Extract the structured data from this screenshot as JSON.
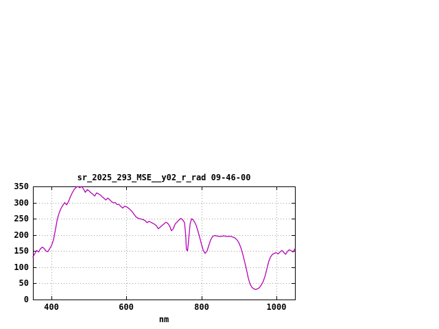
{
  "chart_data": {
    "type": "line",
    "title": "sr_2025_293_MSE__y02_r_rad 09-46-00",
    "xlabel": "nm",
    "ylabel": "",
    "xlim": [
      350,
      1050
    ],
    "ylim": [
      0,
      350
    ],
    "xticks": [
      400,
      600,
      800,
      1000
    ],
    "yticks": [
      0,
      50,
      100,
      150,
      200,
      250,
      300,
      350
    ],
    "grid": true,
    "legend": "none",
    "line_color": "#b400b4",
    "border_color": "#000000",
    "grid_color": "#999999",
    "series": [
      {
        "name": "sr_2025_293_MSE__y02_r_rad",
        "points": [
          [
            350,
            132
          ],
          [
            355,
            142
          ],
          [
            360,
            152
          ],
          [
            365,
            147
          ],
          [
            370,
            157
          ],
          [
            375,
            162
          ],
          [
            380,
            158
          ],
          [
            385,
            150
          ],
          [
            390,
            148
          ],
          [
            395,
            158
          ],
          [
            400,
            168
          ],
          [
            405,
            185
          ],
          [
            410,
            215
          ],
          [
            415,
            248
          ],
          [
            420,
            268
          ],
          [
            425,
            282
          ],
          [
            430,
            292
          ],
          [
            435,
            300
          ],
          [
            440,
            293
          ],
          [
            445,
            303
          ],
          [
            450,
            318
          ],
          [
            455,
            330
          ],
          [
            460,
            340
          ],
          [
            465,
            347
          ],
          [
            470,
            350
          ],
          [
            475,
            346
          ],
          [
            480,
            350
          ],
          [
            485,
            342
          ],
          [
            490,
            332
          ],
          [
            495,
            340
          ],
          [
            500,
            336
          ],
          [
            505,
            330
          ],
          [
            510,
            326
          ],
          [
            515,
            320
          ],
          [
            520,
            330
          ],
          [
            525,
            327
          ],
          [
            530,
            324
          ],
          [
            535,
            318
          ],
          [
            540,
            313
          ],
          [
            545,
            308
          ],
          [
            550,
            314
          ],
          [
            555,
            309
          ],
          [
            560,
            303
          ],
          [
            565,
            299
          ],
          [
            570,
            300
          ],
          [
            575,
            294
          ],
          [
            580,
            294
          ],
          [
            585,
            288
          ],
          [
            590,
            283
          ],
          [
            595,
            289
          ],
          [
            600,
            287
          ],
          [
            605,
            283
          ],
          [
            610,
            278
          ],
          [
            615,
            272
          ],
          [
            620,
            264
          ],
          [
            625,
            256
          ],
          [
            630,
            252
          ],
          [
            635,
            250
          ],
          [
            640,
            249
          ],
          [
            645,
            247
          ],
          [
            650,
            244
          ],
          [
            655,
            238
          ],
          [
            660,
            242
          ],
          [
            665,
            239
          ],
          [
            670,
            236
          ],
          [
            675,
            233
          ],
          [
            680,
            228
          ],
          [
            685,
            219
          ],
          [
            690,
            224
          ],
          [
            695,
            229
          ],
          [
            700,
            234
          ],
          [
            705,
            239
          ],
          [
            710,
            236
          ],
          [
            715,
            228
          ],
          [
            720,
            213
          ],
          [
            725,
            219
          ],
          [
            730,
            234
          ],
          [
            735,
            240
          ],
          [
            740,
            246
          ],
          [
            745,
            251
          ],
          [
            750,
            247
          ],
          [
            755,
            238
          ],
          [
            758,
            200
          ],
          [
            760,
            155
          ],
          [
            763,
            150
          ],
          [
            766,
            185
          ],
          [
            770,
            235
          ],
          [
            774,
            250
          ],
          [
            778,
            246
          ],
          [
            782,
            240
          ],
          [
            786,
            230
          ],
          [
            790,
            215
          ],
          [
            795,
            195
          ],
          [
            800,
            172
          ],
          [
            805,
            152
          ],
          [
            810,
            143
          ],
          [
            815,
            150
          ],
          [
            820,
            168
          ],
          [
            825,
            185
          ],
          [
            830,
            195
          ],
          [
            835,
            198
          ],
          [
            840,
            197
          ],
          [
            845,
            196
          ],
          [
            850,
            195
          ],
          [
            855,
            196
          ],
          [
            860,
            197
          ],
          [
            865,
            196
          ],
          [
            870,
            195
          ],
          [
            875,
            196
          ],
          [
            880,
            195
          ],
          [
            885,
            193
          ],
          [
            890,
            190
          ],
          [
            895,
            185
          ],
          [
            900,
            176
          ],
          [
            905,
            162
          ],
          [
            910,
            143
          ],
          [
            915,
            120
          ],
          [
            920,
            95
          ],
          [
            925,
            68
          ],
          [
            930,
            48
          ],
          [
            935,
            38
          ],
          [
            940,
            33
          ],
          [
            945,
            31
          ],
          [
            950,
            33
          ],
          [
            955,
            37
          ],
          [
            960,
            45
          ],
          [
            965,
            55
          ],
          [
            970,
            72
          ],
          [
            975,
            95
          ],
          [
            980,
            118
          ],
          [
            985,
            132
          ],
          [
            990,
            140
          ],
          [
            995,
            143
          ],
          [
            1000,
            145
          ],
          [
            1005,
            141
          ],
          [
            1010,
            147
          ],
          [
            1015,
            152
          ],
          [
            1020,
            146
          ],
          [
            1025,
            140
          ],
          [
            1030,
            149
          ],
          [
            1035,
            154
          ],
          [
            1040,
            151
          ],
          [
            1045,
            147
          ],
          [
            1050,
            157
          ]
        ]
      }
    ]
  }
}
